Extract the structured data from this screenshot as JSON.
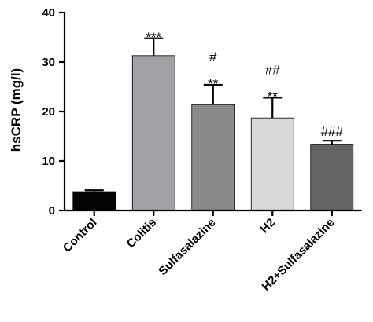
{
  "chart_data": {
    "type": "bar",
    "title": "",
    "xlabel": "",
    "ylabel": "hsCRP (mg/l)",
    "ylim": [
      0,
      40
    ],
    "yticks": [
      0,
      10,
      20,
      30,
      40
    ],
    "grid": false,
    "categories": [
      "Control",
      "Colitis",
      "Sulfasalazine",
      "H2",
      "H2+Sulfasalazine"
    ],
    "values": [
      3.8,
      31.3,
      21.4,
      18.7,
      13.4
    ],
    "errors": [
      0.3,
      3.5,
      4.0,
      4.1,
      0.7
    ],
    "colors": [
      "#050505",
      "#a2a2a6",
      "#8a8a8a",
      "#d8d8d8",
      "#646464"
    ],
    "annotations": [
      [],
      [
        "***"
      ],
      [
        "#",
        "**"
      ],
      [
        "##",
        "**"
      ],
      [
        "###"
      ]
    ]
  }
}
